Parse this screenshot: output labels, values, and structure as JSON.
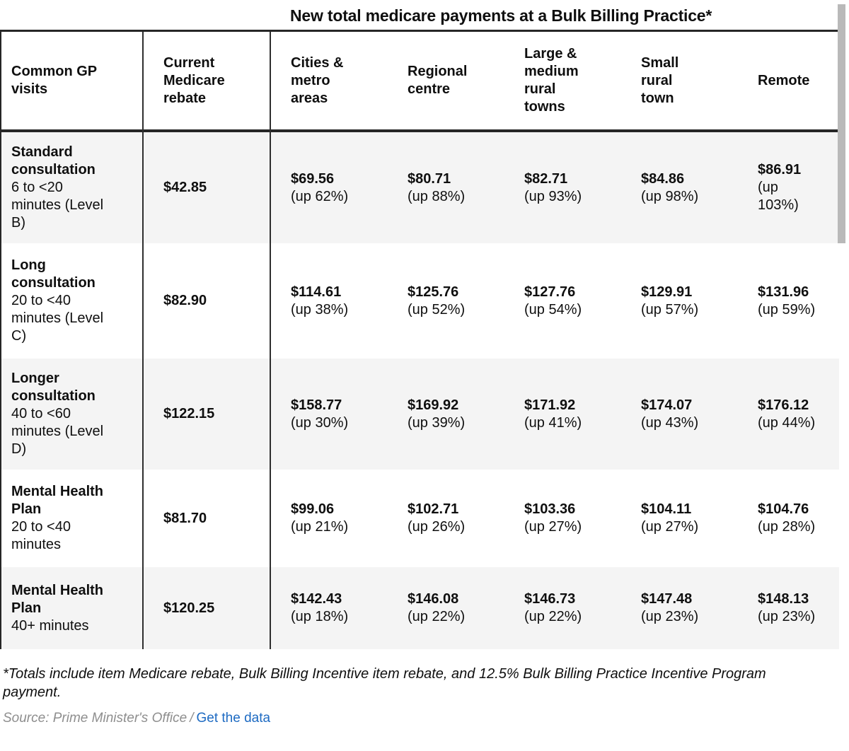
{
  "title": "New total medicare payments at a Bulk Billing Practice*",
  "chart_data": {
    "type": "table",
    "title": "New total medicare payments at a Bulk Billing Practice*",
    "columns": [
      "Common GP visits",
      "Current Medicare rebate",
      "Cities & metro areas",
      "Regional centre",
      "Large & medium rural towns",
      "Small rural town",
      "Remote"
    ],
    "rows": [
      {
        "visit_name": "Standard consultation",
        "visit_detail": "6 to <20 minutes (Level B)",
        "current": "$42.85",
        "payments": [
          {
            "amount": "$69.56",
            "change": "(up 62%)"
          },
          {
            "amount": "$80.71",
            "change": "(up 88%)"
          },
          {
            "amount": "$82.71",
            "change": "(up 93%)"
          },
          {
            "amount": "$84.86",
            "change": "(up 98%)"
          },
          {
            "amount": "$86.91",
            "change": "(up 103%)"
          }
        ]
      },
      {
        "visit_name": "Long consultation",
        "visit_detail": "20 to <40 minutes (Level C)",
        "current": "$82.90",
        "payments": [
          {
            "amount": "$114.61",
            "change": "(up 38%)"
          },
          {
            "amount": "$125.76",
            "change": "(up 52%)"
          },
          {
            "amount": "$127.76",
            "change": "(up 54%)"
          },
          {
            "amount": "$129.91",
            "change": "(up 57%)"
          },
          {
            "amount": "$131.96",
            "change": "(up 59%)"
          }
        ]
      },
      {
        "visit_name": "Longer consultation",
        "visit_detail": "40 to <60 minutes (Level D)",
        "current": "$122.15",
        "payments": [
          {
            "amount": "$158.77",
            "change": "(up 30%)"
          },
          {
            "amount": "$169.92",
            "change": "(up 39%)"
          },
          {
            "amount": "$171.92",
            "change": "(up 41%)"
          },
          {
            "amount": "$174.07",
            "change": "(up 43%)"
          },
          {
            "amount": "$176.12",
            "change": "(up 44%)"
          }
        ]
      },
      {
        "visit_name": "Mental Health Plan",
        "visit_detail": "20 to <40 minutes",
        "current": "$81.70",
        "payments": [
          {
            "amount": "$99.06",
            "change": "(up 21%)"
          },
          {
            "amount": "$102.71",
            "change": "(up 26%)"
          },
          {
            "amount": "$103.36",
            "change": "(up 27%)"
          },
          {
            "amount": "$104.11",
            "change": "(up 27%)"
          },
          {
            "amount": "$104.76",
            "change": "(up 28%)"
          }
        ]
      },
      {
        "visit_name": "Mental Health Plan",
        "visit_detail": "40+ minutes",
        "current": "$120.25",
        "payments": [
          {
            "amount": "$142.43",
            "change": "(up 18%)"
          },
          {
            "amount": "$146.08",
            "change": "(up 22%)"
          },
          {
            "amount": "$146.73",
            "change": "(up 22%)"
          },
          {
            "amount": "$147.48",
            "change": "(up 23%)"
          },
          {
            "amount": "$148.13",
            "change": "(up 23%)"
          }
        ]
      }
    ]
  },
  "footnote": "*Totals include item Medicare rebate, Bulk Billing Incentive item rebate, and 12.5% Bulk Billing Practice Incentive Program payment.",
  "source": {
    "label": "Source: Prime Minister's Office",
    "separator": "/",
    "link": "Get the data"
  },
  "colors": {
    "border_dark": "#262626",
    "row_stripe": "#f4f4f4",
    "text": "#0f0f0f",
    "source_gray": "#8e8e8e",
    "link_blue": "#1d6ac2",
    "scrollbar_gray": "#b9b9b9"
  }
}
